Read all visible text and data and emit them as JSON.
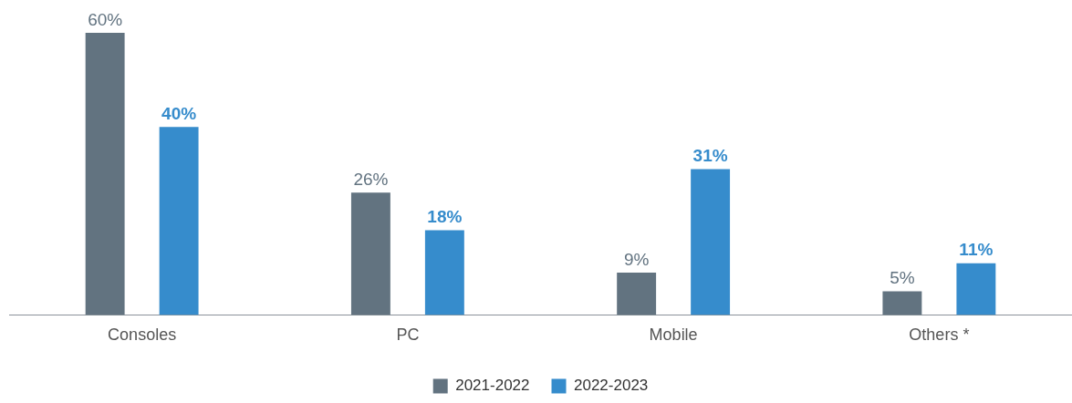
{
  "chart_data": {
    "type": "bar",
    "categories": [
      "Consoles",
      "PC",
      "Mobile",
      "Others *"
    ],
    "series": [
      {
        "name": "2021-2022",
        "color": "#627380",
        "values": [
          60,
          26,
          9,
          5
        ],
        "value_labels": [
          "60%",
          "26%",
          "9%",
          "5%"
        ]
      },
      {
        "name": "2022-2023",
        "color": "#368ccc",
        "values": [
          40,
          18,
          31,
          11
        ],
        "value_labels": [
          "40%",
          "18%",
          "31%",
          "11%"
        ]
      }
    ],
    "legend": "bottom",
    "grid": false
  }
}
